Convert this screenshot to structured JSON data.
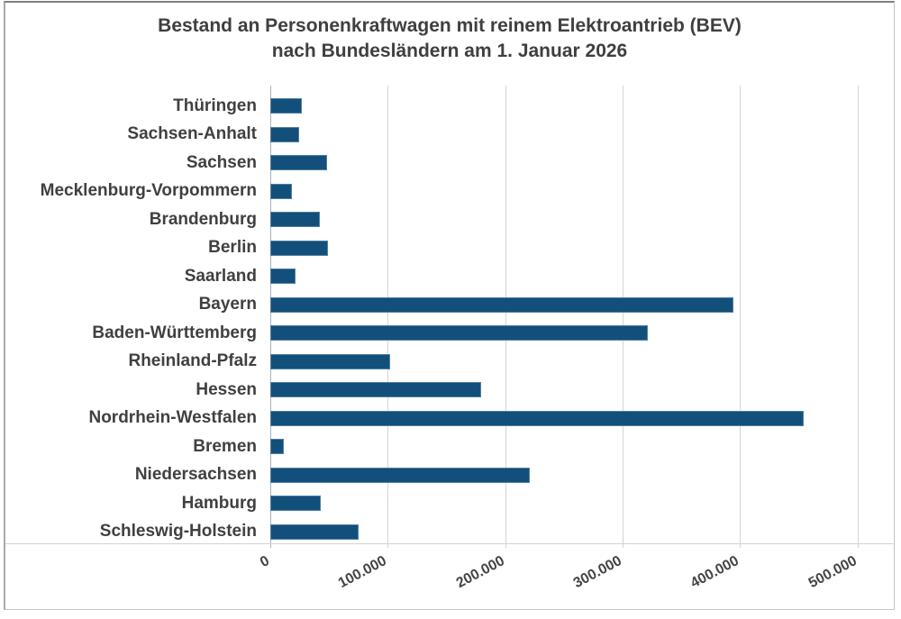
{
  "chart_data": {
    "type": "bar",
    "orientation": "horizontal",
    "title_line1": "Bestand an Personenkraftwagen mit reinem Elektroantrieb (BEV)",
    "title_line2": "nach Bundesländern am 1. Januar 2026",
    "categories": [
      "Thüringen",
      "Sachsen-Anhalt",
      "Sachsen",
      "Mecklenburg-Vorpommern",
      "Brandenburg",
      "Berlin",
      "Saarland",
      "Bayern",
      "Baden-Württemberg",
      "Rheinland-Pfalz",
      "Hessen",
      "Nordrhein-Westfalen",
      "Bremen",
      "Niedersachsen",
      "Hamburg",
      "Schleswig-Holstein"
    ],
    "values": [
      27000,
      24500,
      48000,
      18500,
      42000,
      49000,
      21500,
      394500,
      321500,
      102000,
      179500,
      454000,
      11500,
      221000,
      43000,
      75500
    ],
    "x_ticks": [
      "0",
      "100.000",
      "200.000",
      "300.000",
      "400.000",
      "500.000"
    ],
    "x_tick_values": [
      0,
      100000,
      200000,
      300000,
      400000,
      500000
    ],
    "xlim": [
      0,
      500000
    ],
    "grid": "vertical",
    "legend": "none",
    "bar_color": "#134f7b",
    "bar_border_color": "#517fa1",
    "text_color": "#404040",
    "gridline_color": "#d4d4d4",
    "frame_border_color": "#8c8c8c",
    "background_color": "#ffffff"
  }
}
